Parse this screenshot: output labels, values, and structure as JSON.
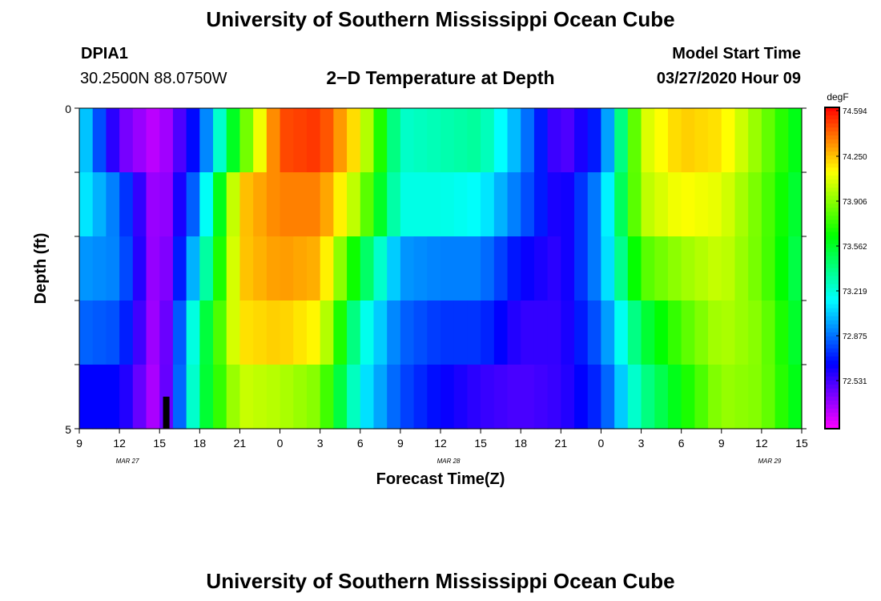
{
  "header": {
    "title": "University of Southern Mississippi Ocean Cube",
    "station_id": "DPIA1",
    "location": "30.2500N 88.0750W",
    "plot_title": "2−D Temperature at Depth",
    "model_start_label": "Model Start Time",
    "model_start_value": "03/27/2020 Hour 09"
  },
  "footer": {
    "title": "University of Southern Mississippi Ocean Cube"
  },
  "colors": {
    "accent": "#000000",
    "marker": "#000000"
  },
  "chart_data": {
    "type": "heatmap",
    "title": "2−D Temperature at Depth",
    "xlabel": "Forecast Time(Z)",
    "ylabel": "Depth (ft)",
    "x_ticks": [
      "9",
      "12",
      "15",
      "18",
      "21",
      "0",
      "3",
      "6",
      "9",
      "12",
      "15",
      "18",
      "21",
      "0",
      "3",
      "6",
      "9",
      "12",
      "15"
    ],
    "x_dates": [
      "MAR 27",
      "MAR 28",
      "MAR 29"
    ],
    "y_ticks": [
      "0",
      "5"
    ],
    "ylim": [
      0,
      5
    ],
    "colorbar": {
      "unit": "degF",
      "labels": [
        "74.594",
        "74.250",
        "73.906",
        "73.562",
        "73.219",
        "72.875",
        "72.531"
      ],
      "range": [
        72.2,
        74.7
      ]
    },
    "depth_rows": 5,
    "time_step_hours": 1,
    "profiles": [
      [
        73.2,
        72.5,
        72.3,
        72.8,
        73.8,
        74.55,
        74.6,
        74.2,
        73.3,
        73.35,
        73.4,
        73.0,
        72.5,
        72.8,
        74.1,
        74.3,
        74.25,
        73.95,
        73.6
      ],
      [
        73.2,
        72.9,
        72.3,
        73.0,
        74.3,
        74.45,
        74.45,
        74.0,
        73.25,
        73.25,
        73.2,
        72.9,
        72.6,
        73.0,
        74.05,
        74.2,
        74.15,
        73.9,
        73.55
      ],
      [
        73.0,
        72.95,
        72.3,
        73.2,
        74.3,
        74.4,
        74.35,
        73.6,
        73.0,
        72.95,
        72.95,
        72.7,
        72.6,
        73.0,
        73.85,
        74.0,
        74.1,
        73.9,
        73.5
      ],
      [
        72.9,
        72.85,
        72.3,
        73.45,
        74.25,
        74.3,
        74.2,
        73.3,
        72.9,
        72.8,
        72.8,
        72.6,
        72.6,
        72.9,
        73.55,
        73.85,
        74.05,
        73.95,
        73.55
      ],
      [
        72.7,
        72.7,
        72.3,
        73.5,
        74.1,
        74.05,
        73.95,
        73.2,
        72.85,
        72.7,
        72.6,
        72.55,
        72.6,
        72.8,
        73.4,
        73.7,
        74.0,
        73.95,
        73.6
      ]
    ],
    "marker": {
      "time_hours": 6.5,
      "depth_from": 4.5,
      "depth_to": 5,
      "color": "#000000"
    }
  }
}
